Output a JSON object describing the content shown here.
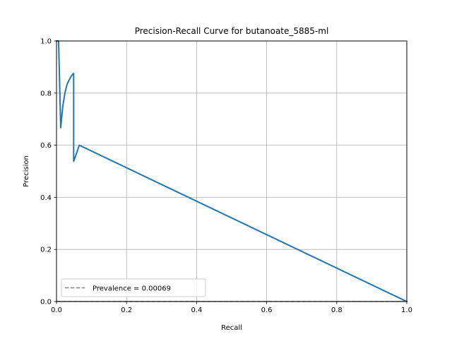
{
  "chart_data": {
    "type": "line",
    "title": "Precision-Recall Curve for butanoate_5885-ml",
    "xlabel": "Recall",
    "ylabel": "Precision",
    "xlim": [
      0.0,
      1.0
    ],
    "ylim": [
      0.0,
      1.0
    ],
    "xticks": [
      "0.0",
      "0.2",
      "0.4",
      "0.6",
      "0.8",
      "1.0"
    ],
    "yticks": [
      "0.0",
      "0.2",
      "0.4",
      "0.6",
      "0.8",
      "1.0"
    ],
    "grid": true,
    "series": [
      {
        "color": "#1f77b4",
        "style": "solid",
        "x": [
          0.0,
          0.006,
          0.012,
          0.018,
          0.024,
          0.03,
          0.036,
          0.042,
          0.048,
          0.049,
          0.049,
          0.06,
          0.065,
          1.0
        ],
        "y": [
          1.0,
          1.0,
          0.667,
          0.75,
          0.8,
          0.833,
          0.85,
          0.865,
          0.875,
          0.875,
          0.538,
          0.58,
          0.6,
          0.0
        ]
      },
      {
        "name": "Prevalence = 0.00069",
        "color": "#808080",
        "style": "dashed",
        "x": [
          0.0,
          1.0
        ],
        "y": [
          0.00069,
          0.00069
        ]
      }
    ],
    "legend": {
      "position": "lower-left",
      "entries": [
        "Prevalence = 0.00069"
      ]
    }
  }
}
